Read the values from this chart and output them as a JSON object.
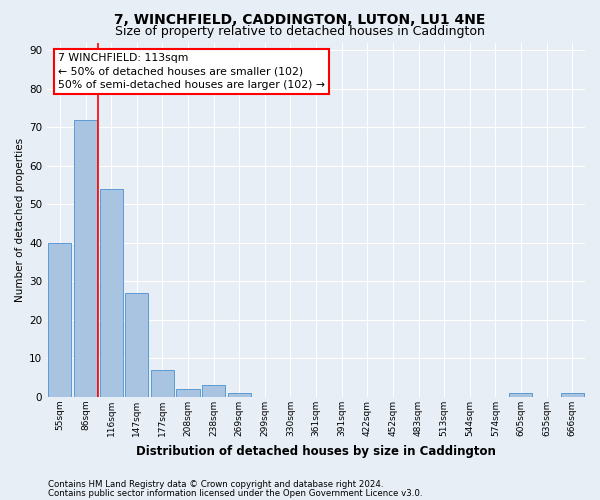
{
  "title": "7, WINCHFIELD, CADDINGTON, LUTON, LU1 4NE",
  "subtitle": "Size of property relative to detached houses in Caddington",
  "xlabel": "Distribution of detached houses by size in Caddington",
  "ylabel": "Number of detached properties",
  "categories": [
    "55sqm",
    "86sqm",
    "116sqm",
    "147sqm",
    "177sqm",
    "208sqm",
    "238sqm",
    "269sqm",
    "299sqm",
    "330sqm",
    "361sqm",
    "391sqm",
    "422sqm",
    "452sqm",
    "483sqm",
    "513sqm",
    "544sqm",
    "574sqm",
    "605sqm",
    "635sqm",
    "666sqm"
  ],
  "values": [
    40,
    72,
    54,
    27,
    7,
    2,
    3,
    1,
    0,
    0,
    0,
    0,
    0,
    0,
    0,
    0,
    0,
    0,
    1,
    0,
    1
  ],
  "bar_color": "#a8c4e0",
  "bar_edge_color": "#5b9bd5",
  "red_line_x": 1.5,
  "annotation_title": "7 WINCHFIELD: 113sqm",
  "annotation_line1": "← 50% of detached houses are smaller (102)",
  "annotation_line2": "50% of semi-detached houses are larger (102) →",
  "ylim": [
    0,
    92
  ],
  "yticks": [
    0,
    10,
    20,
    30,
    40,
    50,
    60,
    70,
    80,
    90
  ],
  "footer_line1": "Contains HM Land Registry data © Crown copyright and database right 2024.",
  "footer_line2": "Contains public sector information licensed under the Open Government Licence v3.0.",
  "background_color": "#e8eef5",
  "plot_bg_color": "#e8eef5",
  "grid_color": "#ffffff",
  "title_fontsize": 10,
  "subtitle_fontsize": 9
}
